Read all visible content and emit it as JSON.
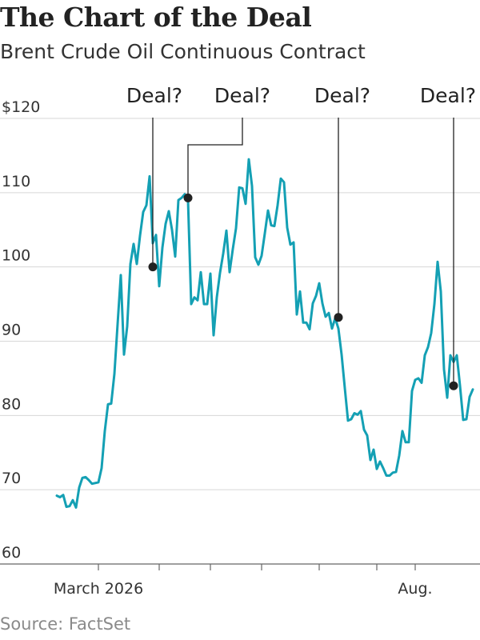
{
  "title": "The Chart of the Deal",
  "subtitle": "Brent Crude Oil Continuous Contract",
  "source": "Source: FactSet",
  "chart_data": {
    "type": "line",
    "title": "The Chart of the Deal",
    "subtitle": "Brent Crude Oil Continuous Contract",
    "xlabel": "",
    "ylabel": "",
    "ylim": [
      60,
      120
    ],
    "yticks": [
      60,
      70,
      80,
      90,
      100,
      110,
      120
    ],
    "ytick_labels": [
      "60",
      "70",
      "80",
      "90",
      "100",
      "110",
      "$120"
    ],
    "xtick_labels": [
      {
        "index": 13,
        "label": "March 2026"
      },
      {
        "index": 112,
        "label": "Aug."
      }
    ],
    "x_minor_ticks_index": [
      13,
      32,
      48,
      64,
      82,
      100,
      112
    ],
    "grid": true,
    "color": "#14a0b4",
    "series": [
      {
        "values": [
          69.2,
          69.0,
          69.3,
          67.7,
          67.8,
          68.6,
          67.6,
          70.3,
          71.6,
          71.7,
          71.3,
          70.8,
          70.9,
          71.0,
          72.9,
          77.9,
          81.5,
          81.6,
          85.6,
          92.3,
          98.9,
          88.2,
          92.0,
          100.4,
          103.1,
          100.4,
          104.2,
          107.4,
          108.3,
          112.2,
          103.2,
          104.3,
          97.4,
          102.6,
          105.8,
          107.5,
          105.0,
          101.4,
          109.0,
          109.3,
          109.8,
          109.0,
          95.0,
          95.9,
          95.5,
          99.3,
          95.0,
          95.0,
          99.1,
          90.8,
          95.9,
          99.2,
          101.8,
          104.9,
          99.3,
          102.4,
          105.2,
          110.7,
          110.6,
          108.5,
          114.5,
          110.9,
          101.3,
          100.3,
          101.5,
          104.5,
          107.6,
          105.6,
          105.5,
          108.3,
          111.9,
          111.4,
          105.3,
          103.0,
          103.3,
          93.6,
          96.7,
          92.5,
          92.5,
          91.6,
          95.1,
          96.1,
          97.8,
          95.1,
          93.3,
          93.8,
          91.7,
          93.1,
          91.7,
          88.2,
          83.7,
          79.3,
          79.5,
          80.3,
          80.1,
          80.6,
          78.1,
          77.3,
          74.0,
          75.4,
          72.8,
          73.8,
          72.9,
          71.9,
          71.9,
          72.3,
          72.4,
          74.6,
          77.9,
          76.4,
          76.4,
          83.3,
          84.8,
          85.0,
          84.4,
          88.1,
          89.2,
          91.1,
          95.0,
          100.7,
          96.7,
          86.2,
          82.4,
          88.1,
          87.2,
          88.1,
          84.0,
          79.4,
          79.5,
          82.5,
          83.5
        ]
      }
    ],
    "annotations": [
      {
        "label": "Deal?",
        "index": 30,
        "value": 100.0
      },
      {
        "label": "Deal?",
        "index": 41,
        "value": 109.3
      },
      {
        "label": "Deal?",
        "index": 88,
        "value": 93.2
      },
      {
        "label": "Deal?",
        "index": 124,
        "value": 84.0
      }
    ]
  }
}
